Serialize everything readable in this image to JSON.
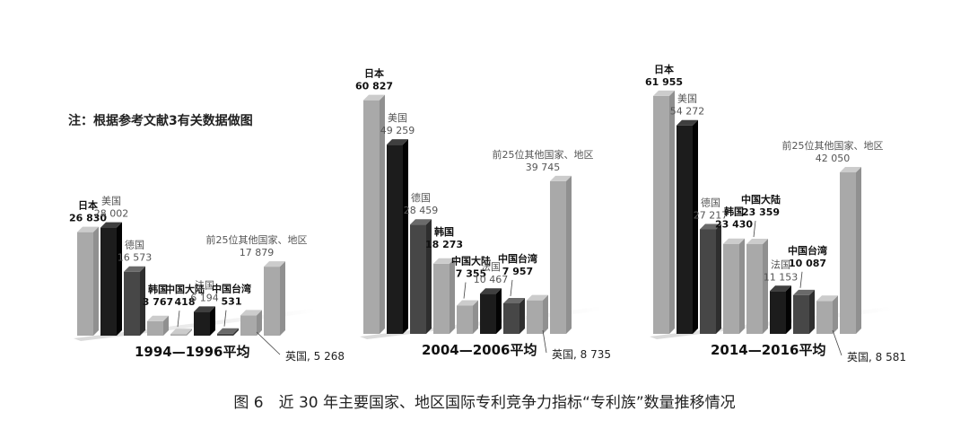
{
  "note": "注：根据参考文献3有关数据做图",
  "caption": "图 6　近 30 年主要国家、地区国际专利竞争力指标“专利族”数量推移情况",
  "chart_data": {
    "type": "bar",
    "unit": "",
    "categories": [
      "日本",
      "美国",
      "德国",
      "韩国",
      "中国大陆",
      "法国",
      "中国台湾",
      "英国",
      "前25位其他国家、地区"
    ],
    "periods": [
      {
        "label": "1994—1996平均",
        "values": [
          26830,
          28002,
          16573,
          3767,
          418,
          6194,
          531,
          5268,
          17879
        ],
        "value_labels": [
          "26 830",
          "28 002",
          "16 573",
          "3 767",
          "418",
          "6 194",
          "531",
          "5 268",
          "17 879"
        ],
        "uk_callout": "英国, 5 268"
      },
      {
        "label": "2004—2006平均",
        "values": [
          60827,
          49259,
          28459,
          18273,
          7355,
          10467,
          7957,
          8735,
          39745
        ],
        "value_labels": [
          "60 827",
          "49 259",
          "28 459",
          "18 273",
          "7 355",
          "10 467",
          "7 957",
          "8 735",
          "39 745"
        ],
        "uk_callout": "英国, 8 735"
      },
      {
        "label": "2014—2016平均",
        "values": [
          61955,
          54272,
          27217,
          23430,
          23359,
          11153,
          10087,
          8581,
          42050
        ],
        "value_labels": [
          "61 955",
          "54 272",
          "27 217",
          "23 430",
          "23 359",
          "11 153",
          "10 087",
          "8 581",
          "42 050"
        ],
        "uk_callout": "英国, 8 581"
      }
    ],
    "colors": {
      "light": "#a9a9a9",
      "dark": "#1c1c1c",
      "medium": "#474747"
    },
    "category_colors": [
      "light",
      "dark",
      "medium",
      "light",
      "light",
      "dark",
      "medium",
      "light",
      "light"
    ],
    "bold_categories": [
      "日本",
      "韩国",
      "中国大陆",
      "中国台湾"
    ]
  }
}
